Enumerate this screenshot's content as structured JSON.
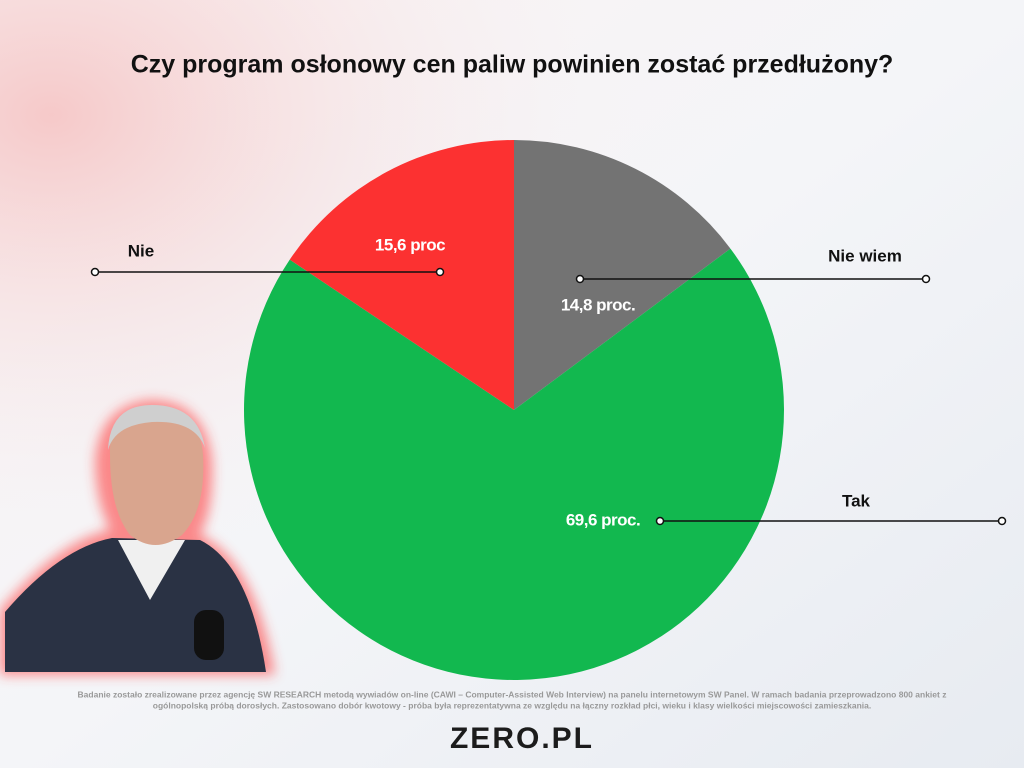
{
  "chart_data": {
    "type": "pie",
    "title": "Czy program osłonowy cen paliw powinien zostać przedłużony?",
    "categories": [
      "Nie wiem",
      "Tak",
      "Nie"
    ],
    "values": [
      14.8,
      69.6,
      15.6
    ],
    "value_labels": [
      "14,8 proc.",
      "69,6 proc.",
      "15,6 proc"
    ],
    "colors": [
      "#737373",
      "#12b84f",
      "#fc3131"
    ]
  },
  "footnote": [
    "Badanie zostało zrealizowane przez agencję SW RESEARCH metodą wywiadów on-line (CAWI – Computer-Assisted Web Interview) na panelu internetowym SW Panel. W ramach badania przeprowadzono 800 ankiet z",
    "ogólnopolską próbą dorosłych. Zastosowano dobór kwotowy - próba była reprezentatywna ze względu na łączny rozkład płci, wieku i klasy wielkości miejscowości zamieszkania."
  ],
  "logo": "ZERO.PL"
}
